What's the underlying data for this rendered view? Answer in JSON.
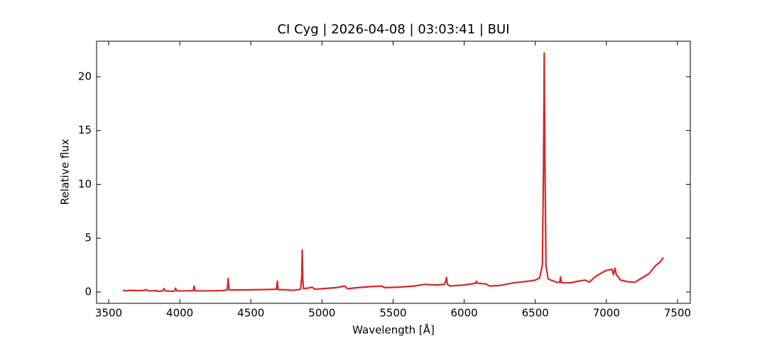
{
  "chart_data": {
    "type": "line",
    "title": "CI Cyg | 2026-04-08 | 03:03:41 | BUI",
    "x_label": "Wavelength [Å]",
    "y_label": "Relative flux",
    "x": [
      3600,
      3620,
      3650,
      3700,
      3750,
      3760,
      3780,
      3835,
      3850,
      3880,
      3889,
      3900,
      3950,
      3965,
      3970,
      3980,
      4050,
      4095,
      4101,
      4108,
      4200,
      4300,
      4334,
      4340,
      4347,
      4400,
      4500,
      4600,
      4680,
      4686,
      4692,
      4750,
      4800,
      4850,
      4858,
      4861,
      4865,
      4870,
      4900,
      4930,
      4950,
      5000,
      5100,
      5160,
      5180,
      5250,
      5350,
      5420,
      5440,
      5550,
      5650,
      5720,
      5800,
      5860,
      5870,
      5876,
      5882,
      5900,
      6000,
      6080,
      6085,
      6095,
      6150,
      6180,
      6250,
      6350,
      6450,
      6500,
      6530,
      6550,
      6558,
      6563,
      6568,
      6575,
      6590,
      6650,
      6672,
      6678,
      6684,
      6750,
      6800,
      6850,
      6880,
      6920,
      6970,
      7000,
      7040,
      7050,
      7060,
      7070,
      7100,
      7150,
      7200,
      7250,
      7300,
      7350,
      7380,
      7400
    ],
    "series": [
      {
        "color": "#d62728",
        "values": [
          0.15,
          0.1,
          0.15,
          0.12,
          0.15,
          0.22,
          0.1,
          0.12,
          0.05,
          0.1,
          0.3,
          0.1,
          0.05,
          0.1,
          0.35,
          0.1,
          0.1,
          0.12,
          0.55,
          0.1,
          0.1,
          0.12,
          0.2,
          1.25,
          0.2,
          0.18,
          0.2,
          0.22,
          0.25,
          1.0,
          0.22,
          0.2,
          0.15,
          0.25,
          1.5,
          3.9,
          1.2,
          0.3,
          0.35,
          0.45,
          0.25,
          0.3,
          0.4,
          0.55,
          0.3,
          0.4,
          0.5,
          0.55,
          0.4,
          0.45,
          0.55,
          0.7,
          0.65,
          0.7,
          1.0,
          1.35,
          0.7,
          0.55,
          0.65,
          0.8,
          1.0,
          0.8,
          0.75,
          0.55,
          0.6,
          0.85,
          1.0,
          1.1,
          1.3,
          2.5,
          12,
          22.2,
          12,
          2.5,
          1.2,
          0.9,
          0.9,
          1.4,
          0.85,
          0.85,
          1.0,
          1.1,
          0.9,
          1.4,
          1.8,
          2.0,
          2.1,
          1.6,
          2.2,
          1.6,
          1.1,
          0.95,
          0.9,
          1.3,
          1.7,
          2.5,
          2.8,
          3.2
        ]
      }
    ],
    "xlim": [
      3415,
      7590
    ],
    "xticks": [
      3500,
      4000,
      4500,
      5000,
      5500,
      6000,
      6500,
      7000,
      7500
    ],
    "ylim": [
      -1.06,
      23.3
    ],
    "yticks": [
      0,
      5,
      10,
      15,
      20
    ]
  }
}
